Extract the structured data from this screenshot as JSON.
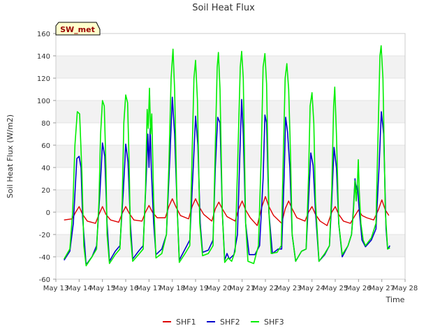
{
  "chart_data": {
    "type": "line",
    "title": "Soil Heat Flux",
    "xlabel": "Time",
    "ylabel": "Soil Heat Flux (W/m2)",
    "badge": "SW_met",
    "xlim": [
      13,
      28
    ],
    "ylim": [
      -60,
      160
    ],
    "x_ticks": [
      13,
      14,
      15,
      16,
      17,
      18,
      19,
      20,
      21,
      22,
      23,
      24,
      25,
      26,
      27,
      28
    ],
    "x_tick_labels": [
      "May 13",
      "May 14",
      "May 15",
      "May 16",
      "May 17",
      "May 18",
      "May 19",
      "May 20",
      "May 21",
      "May 22",
      "May 23",
      "May 24",
      "May 25",
      "May 26",
      "May 27",
      "May 28"
    ],
    "y_ticks": [
      -60,
      -40,
      -20,
      0,
      20,
      40,
      60,
      80,
      100,
      120,
      140,
      160
    ],
    "grid": true,
    "legend_position": "bottom-center",
    "series": [
      {
        "name": "SHF1",
        "color": "#dd0000",
        "points": [
          [
            13.35,
            -7
          ],
          [
            13.7,
            -6
          ],
          [
            13.85,
            0
          ],
          [
            14.0,
            5
          ],
          [
            14.15,
            -2
          ],
          [
            14.35,
            -8
          ],
          [
            14.7,
            -10
          ],
          [
            14.85,
            -2
          ],
          [
            15.0,
            5
          ],
          [
            15.15,
            -2
          ],
          [
            15.35,
            -7
          ],
          [
            15.7,
            -9
          ],
          [
            15.85,
            -1
          ],
          [
            16.0,
            5
          ],
          [
            16.15,
            -1
          ],
          [
            16.35,
            -7
          ],
          [
            16.7,
            -8
          ],
          [
            16.85,
            0
          ],
          [
            17.0,
            6
          ],
          [
            17.15,
            0
          ],
          [
            17.35,
            -5
          ],
          [
            17.7,
            -5
          ],
          [
            17.85,
            5
          ],
          [
            18.0,
            12
          ],
          [
            18.15,
            5
          ],
          [
            18.35,
            -3
          ],
          [
            18.7,
            -6
          ],
          [
            18.85,
            5
          ],
          [
            19.0,
            12
          ],
          [
            19.15,
            5
          ],
          [
            19.35,
            -2
          ],
          [
            19.7,
            -8
          ],
          [
            19.85,
            3
          ],
          [
            20.0,
            9
          ],
          [
            20.15,
            3
          ],
          [
            20.35,
            -4
          ],
          [
            20.7,
            -8
          ],
          [
            20.85,
            3
          ],
          [
            21.0,
            10
          ],
          [
            21.15,
            2
          ],
          [
            21.35,
            -5
          ],
          [
            21.65,
            -12
          ],
          [
            21.85,
            5
          ],
          [
            22.0,
            14
          ],
          [
            22.15,
            5
          ],
          [
            22.35,
            -3
          ],
          [
            22.7,
            -10
          ],
          [
            22.85,
            3
          ],
          [
            23.0,
            10
          ],
          [
            23.15,
            3
          ],
          [
            23.35,
            -5
          ],
          [
            23.7,
            -8
          ],
          [
            23.85,
            0
          ],
          [
            24.0,
            5
          ],
          [
            24.15,
            -2
          ],
          [
            24.35,
            -8
          ],
          [
            24.65,
            -12
          ],
          [
            24.85,
            0
          ],
          [
            25.0,
            5
          ],
          [
            25.15,
            -2
          ],
          [
            25.35,
            -8
          ],
          [
            25.65,
            -10
          ],
          [
            25.85,
            -3
          ],
          [
            26.0,
            2
          ],
          [
            26.15,
            -3
          ],
          [
            26.35,
            -5
          ],
          [
            26.65,
            -7
          ],
          [
            26.85,
            2
          ],
          [
            27.0,
            11
          ],
          [
            27.15,
            2
          ],
          [
            27.3,
            -3
          ]
        ]
      },
      {
        "name": "SHF2",
        "color": "#0000cc",
        "points": [
          [
            13.35,
            -43
          ],
          [
            13.6,
            -35
          ],
          [
            13.75,
            -10
          ],
          [
            13.9,
            48
          ],
          [
            14.0,
            50
          ],
          [
            14.08,
            40
          ],
          [
            14.15,
            -5
          ],
          [
            14.3,
            -47
          ],
          [
            14.55,
            -40
          ],
          [
            14.75,
            -30
          ],
          [
            14.9,
            20
          ],
          [
            15.0,
            62
          ],
          [
            15.1,
            50
          ],
          [
            15.2,
            -10
          ],
          [
            15.3,
            -44
          ],
          [
            15.55,
            -35
          ],
          [
            15.75,
            -30
          ],
          [
            15.9,
            20
          ],
          [
            16.0,
            61
          ],
          [
            16.1,
            45
          ],
          [
            16.2,
            -10
          ],
          [
            16.3,
            -42
          ],
          [
            16.55,
            -35
          ],
          [
            16.75,
            -30
          ],
          [
            16.88,
            30
          ],
          [
            16.95,
            70
          ],
          [
            17.0,
            40
          ],
          [
            17.05,
            75
          ],
          [
            17.1,
            38
          ],
          [
            17.2,
            -10
          ],
          [
            17.3,
            -38
          ],
          [
            17.55,
            -33
          ],
          [
            17.75,
            -20
          ],
          [
            17.9,
            50
          ],
          [
            18.0,
            103
          ],
          [
            18.1,
            70
          ],
          [
            18.2,
            10
          ],
          [
            18.3,
            -43
          ],
          [
            18.55,
            -33
          ],
          [
            18.75,
            -25
          ],
          [
            18.9,
            40
          ],
          [
            19.0,
            86
          ],
          [
            19.1,
            60
          ],
          [
            19.2,
            -10
          ],
          [
            19.3,
            -36
          ],
          [
            19.55,
            -34
          ],
          [
            19.75,
            -25
          ],
          [
            19.85,
            40
          ],
          [
            19.95,
            85
          ],
          [
            20.05,
            80
          ],
          [
            20.15,
            0
          ],
          [
            20.25,
            -43
          ],
          [
            20.35,
            -37
          ],
          [
            20.45,
            -42
          ],
          [
            20.65,
            -38
          ],
          [
            20.8,
            -20
          ],
          [
            20.9,
            50
          ],
          [
            20.98,
            101
          ],
          [
            21.05,
            70
          ],
          [
            21.15,
            -10
          ],
          [
            21.3,
            -38
          ],
          [
            21.55,
            -38
          ],
          [
            21.75,
            -30
          ],
          [
            21.9,
            30
          ],
          [
            21.98,
            87
          ],
          [
            22.05,
            80
          ],
          [
            22.15,
            0
          ],
          [
            22.3,
            -37
          ],
          [
            22.55,
            -33
          ],
          [
            22.7,
            -33
          ],
          [
            22.8,
            30
          ],
          [
            22.87,
            85
          ],
          [
            22.95,
            72
          ],
          [
            23.05,
            40
          ],
          [
            23.15,
            -20
          ],
          [
            23.3,
            -44
          ],
          [
            23.55,
            -35
          ],
          [
            23.75,
            -33
          ],
          [
            23.85,
            10
          ],
          [
            23.95,
            53
          ],
          [
            24.05,
            42
          ],
          [
            24.15,
            0
          ],
          [
            24.3,
            -44
          ],
          [
            24.55,
            -38
          ],
          [
            24.75,
            -30
          ],
          [
            24.85,
            10
          ],
          [
            24.95,
            58
          ],
          [
            25.05,
            40
          ],
          [
            25.15,
            -10
          ],
          [
            25.3,
            -40
          ],
          [
            25.55,
            -30
          ],
          [
            25.7,
            -20
          ],
          [
            25.78,
            3
          ],
          [
            25.85,
            30
          ],
          [
            25.9,
            20
          ],
          [
            25.95,
            25
          ],
          [
            26.0,
            10
          ],
          [
            26.05,
            -3
          ],
          [
            26.15,
            -25
          ],
          [
            26.3,
            -31
          ],
          [
            26.55,
            -25
          ],
          [
            26.75,
            -15
          ],
          [
            26.88,
            40
          ],
          [
            26.98,
            90
          ],
          [
            27.08,
            70
          ],
          [
            27.18,
            -15
          ],
          [
            27.25,
            -33
          ],
          [
            27.35,
            -30
          ]
        ]
      },
      {
        "name": "SHF3",
        "color": "#00ee00",
        "points": [
          [
            13.35,
            -42
          ],
          [
            13.6,
            -33
          ],
          [
            13.72,
            0
          ],
          [
            13.82,
            60
          ],
          [
            13.92,
            90
          ],
          [
            14.02,
            88
          ],
          [
            14.12,
            35
          ],
          [
            14.2,
            -30
          ],
          [
            14.3,
            -48
          ],
          [
            14.55,
            -40
          ],
          [
            14.75,
            -33
          ],
          [
            14.85,
            10
          ],
          [
            14.92,
            70
          ],
          [
            15.0,
            100
          ],
          [
            15.08,
            95
          ],
          [
            15.15,
            40
          ],
          [
            15.2,
            -20
          ],
          [
            15.3,
            -46
          ],
          [
            15.55,
            -38
          ],
          [
            15.75,
            -33
          ],
          [
            15.85,
            10
          ],
          [
            15.92,
            80
          ],
          [
            16.0,
            105
          ],
          [
            16.08,
            98
          ],
          [
            16.15,
            40
          ],
          [
            16.2,
            -20
          ],
          [
            16.3,
            -44
          ],
          [
            16.55,
            -38
          ],
          [
            16.75,
            -33
          ],
          [
            16.85,
            20
          ],
          [
            16.92,
            92
          ],
          [
            16.97,
            75
          ],
          [
            17.02,
            111
          ],
          [
            17.07,
            70
          ],
          [
            17.12,
            88
          ],
          [
            17.2,
            10
          ],
          [
            17.3,
            -41
          ],
          [
            17.55,
            -37
          ],
          [
            17.75,
            -20
          ],
          [
            17.85,
            40
          ],
          [
            17.95,
            120
          ],
          [
            18.03,
            146
          ],
          [
            18.1,
            110
          ],
          [
            18.2,
            10
          ],
          [
            18.3,
            -45
          ],
          [
            18.55,
            -37
          ],
          [
            18.75,
            -30
          ],
          [
            18.85,
            50
          ],
          [
            18.93,
            120
          ],
          [
            19.0,
            136
          ],
          [
            19.08,
            100
          ],
          [
            19.18,
            -10
          ],
          [
            19.3,
            -39
          ],
          [
            19.55,
            -37
          ],
          [
            19.75,
            -30
          ],
          [
            19.85,
            60
          ],
          [
            19.93,
            130
          ],
          [
            19.98,
            143
          ],
          [
            20.05,
            110
          ],
          [
            20.15,
            0
          ],
          [
            20.25,
            -45
          ],
          [
            20.4,
            -41
          ],
          [
            20.55,
            -44
          ],
          [
            20.7,
            -35
          ],
          [
            20.83,
            60
          ],
          [
            20.92,
            130
          ],
          [
            20.98,
            144
          ],
          [
            21.05,
            120
          ],
          [
            21.15,
            -10
          ],
          [
            21.25,
            -44
          ],
          [
            21.5,
            -46
          ],
          [
            21.7,
            -30
          ],
          [
            21.82,
            50
          ],
          [
            21.9,
            130
          ],
          [
            21.98,
            142
          ],
          [
            22.05,
            115
          ],
          [
            22.15,
            0
          ],
          [
            22.25,
            -37
          ],
          [
            22.5,
            -36
          ],
          [
            22.68,
            -30
          ],
          [
            22.78,
            60
          ],
          [
            22.85,
            120
          ],
          [
            22.92,
            133
          ],
          [
            23.0,
            110
          ],
          [
            23.08,
            50
          ],
          [
            23.15,
            -20
          ],
          [
            23.3,
            -44
          ],
          [
            23.55,
            -35
          ],
          [
            23.75,
            -33
          ],
          [
            23.85,
            30
          ],
          [
            23.92,
            95
          ],
          [
            24.0,
            107
          ],
          [
            24.08,
            80
          ],
          [
            24.15,
            10
          ],
          [
            24.3,
            -44
          ],
          [
            24.55,
            -37
          ],
          [
            24.75,
            -30
          ],
          [
            24.85,
            20
          ],
          [
            24.93,
            95
          ],
          [
            24.98,
            112
          ],
          [
            25.05,
            70
          ],
          [
            25.15,
            -10
          ],
          [
            25.3,
            -38
          ],
          [
            25.55,
            -30
          ],
          [
            25.7,
            -20
          ],
          [
            25.78,
            0
          ],
          [
            25.85,
            28
          ],
          [
            25.9,
            10
          ],
          [
            25.95,
            25
          ],
          [
            25.99,
            47
          ],
          [
            26.03,
            20
          ],
          [
            26.1,
            -10
          ],
          [
            26.2,
            -25
          ],
          [
            26.3,
            -30
          ],
          [
            26.55,
            -23
          ],
          [
            26.75,
            -10
          ],
          [
            26.85,
            80
          ],
          [
            26.92,
            140
          ],
          [
            26.97,
            149
          ],
          [
            27.05,
            120
          ],
          [
            27.15,
            0
          ],
          [
            27.25,
            -33
          ],
          [
            27.35,
            -32
          ]
        ]
      }
    ]
  }
}
